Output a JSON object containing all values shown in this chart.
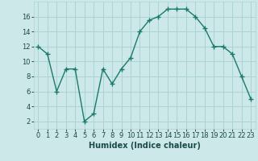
{
  "x": [
    0,
    1,
    2,
    3,
    4,
    5,
    6,
    7,
    8,
    9,
    10,
    11,
    12,
    13,
    14,
    15,
    16,
    17,
    18,
    19,
    20,
    21,
    22,
    23
  ],
  "y": [
    12,
    11,
    6,
    9,
    9,
    2,
    3,
    9,
    7,
    9,
    10.5,
    14,
    15.5,
    16,
    17,
    17,
    17,
    16,
    14.5,
    12,
    12,
    11,
    8,
    5
  ],
  "line_color": "#1a7a6e",
  "marker": "+",
  "bg_color": "#cce8e8",
  "grid_color": "#aad4d4",
  "xlabel": "Humidex (Indice chaleur)",
  "xlim": [
    -0.5,
    23.5
  ],
  "ylim": [
    1,
    18
  ],
  "yticks": [
    2,
    4,
    6,
    8,
    10,
    12,
    14,
    16
  ],
  "xticks": [
    0,
    1,
    2,
    3,
    4,
    5,
    6,
    7,
    8,
    9,
    10,
    11,
    12,
    13,
    14,
    15,
    16,
    17,
    18,
    19,
    20,
    21,
    22,
    23
  ],
  "xtick_labels": [
    "0",
    "1",
    "2",
    "3",
    "4",
    "5",
    "6",
    "7",
    "8",
    "9",
    "10",
    "11",
    "12",
    "13",
    "14",
    "15",
    "16",
    "17",
    "18",
    "19",
    "20",
    "21",
    "22",
    "23"
  ],
  "font_color": "#1a4a4a",
  "linewidth": 1.0,
  "markersize": 4,
  "tick_fontsize": 6.0,
  "xlabel_fontsize": 7.0
}
